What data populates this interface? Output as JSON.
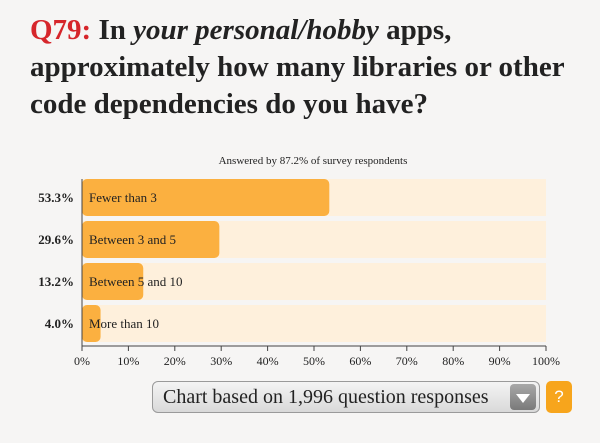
{
  "question": {
    "number": "Q79:",
    "text_before": " In ",
    "text_emphasis": "your personal/hobby",
    "text_after": " apps, approximately how many libraries or other code dependencies do you have?"
  },
  "chart_data": {
    "type": "bar",
    "orientation": "horizontal",
    "subtitle": "Answered by 87.2% of survey respondents",
    "categories": [
      "Fewer than 3",
      "Between 3 and 5",
      "Between 5 and 10",
      "More than 10"
    ],
    "values": [
      53.3,
      29.6,
      13.2,
      4.0
    ],
    "value_labels": [
      "53.3%",
      "29.6%",
      "13.2%",
      "4.0%"
    ],
    "xlim": [
      0,
      100
    ],
    "x_ticks": [
      "0%",
      "10%",
      "20%",
      "30%",
      "40%",
      "50%",
      "60%",
      "70%",
      "80%",
      "90%",
      "100%"
    ],
    "bar_color": "#fbb040",
    "track_color": "#fef0dc",
    "grid": false
  },
  "footer": {
    "select_label": "Chart based on 1,996 question responses",
    "help_label": "?"
  }
}
